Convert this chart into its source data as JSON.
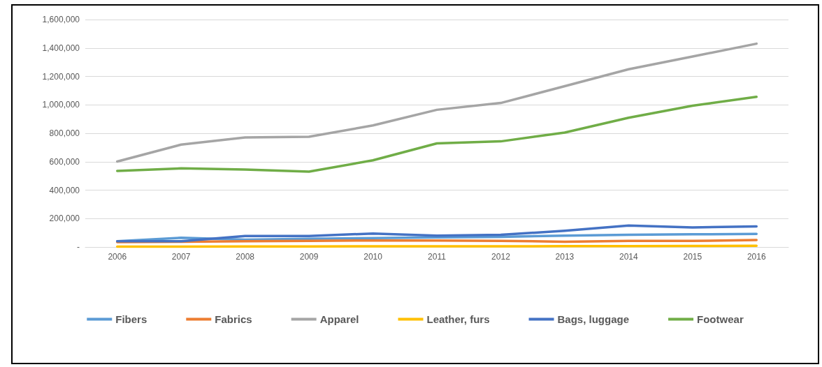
{
  "chart_data": {
    "type": "line",
    "categories": [
      "2006",
      "2007",
      "2008",
      "2009",
      "2010",
      "2011",
      "2012",
      "2013",
      "2014",
      "2015",
      "2016"
    ],
    "series": [
      {
        "name": "Fibers",
        "color": "#5b9bd5",
        "values": [
          40000,
          65000,
          52000,
          58000,
          62000,
          68000,
          71000,
          80000,
          86000,
          89000,
          92000
        ]
      },
      {
        "name": "Fabrics",
        "color": "#ed7d31",
        "values": [
          34000,
          37000,
          40000,
          43000,
          46000,
          46000,
          43000,
          37000,
          43000,
          43000,
          49000
        ]
      },
      {
        "name": "Apparel",
        "color": "#a5a5a5",
        "values": [
          601000,
          720000,
          770000,
          775000,
          855000,
          965000,
          1013000,
          1131000,
          1250000,
          1340000,
          1430000
        ]
      },
      {
        "name": "Leather, furs",
        "color": "#ffc000",
        "values": [
          3000,
          3000,
          4000,
          4000,
          5000,
          5000,
          5000,
          6000,
          6000,
          7000,
          8000
        ]
      },
      {
        "name": "Bags, luggage",
        "color": "#4472c4",
        "values": [
          40000,
          40000,
          77000,
          77000,
          95000,
          80000,
          86000,
          114000,
          151000,
          138000,
          145000
        ]
      },
      {
        "name": "Footwear",
        "color": "#70ad47",
        "values": [
          535000,
          553000,
          545000,
          530000,
          610000,
          729000,
          743000,
          805000,
          909000,
          994000,
          1056000
        ]
      }
    ],
    "ylim": [
      0,
      1600000
    ],
    "yticks": [
      {
        "value": 0,
        "label": "-"
      },
      {
        "value": 200000,
        "label": "200,000"
      },
      {
        "value": 400000,
        "label": "400,000"
      },
      {
        "value": 600000,
        "label": "600,000"
      },
      {
        "value": 800000,
        "label": "800,000"
      },
      {
        "value": 1000000,
        "label": "1,000,000"
      },
      {
        "value": 1200000,
        "label": "1,200,000"
      },
      {
        "value": 1400000,
        "label": "1,400,000"
      },
      {
        "value": 1600000,
        "label": "1,600,000"
      }
    ],
    "grid": "y",
    "legend": "bottom",
    "marker": "none",
    "line_style": "solid"
  }
}
